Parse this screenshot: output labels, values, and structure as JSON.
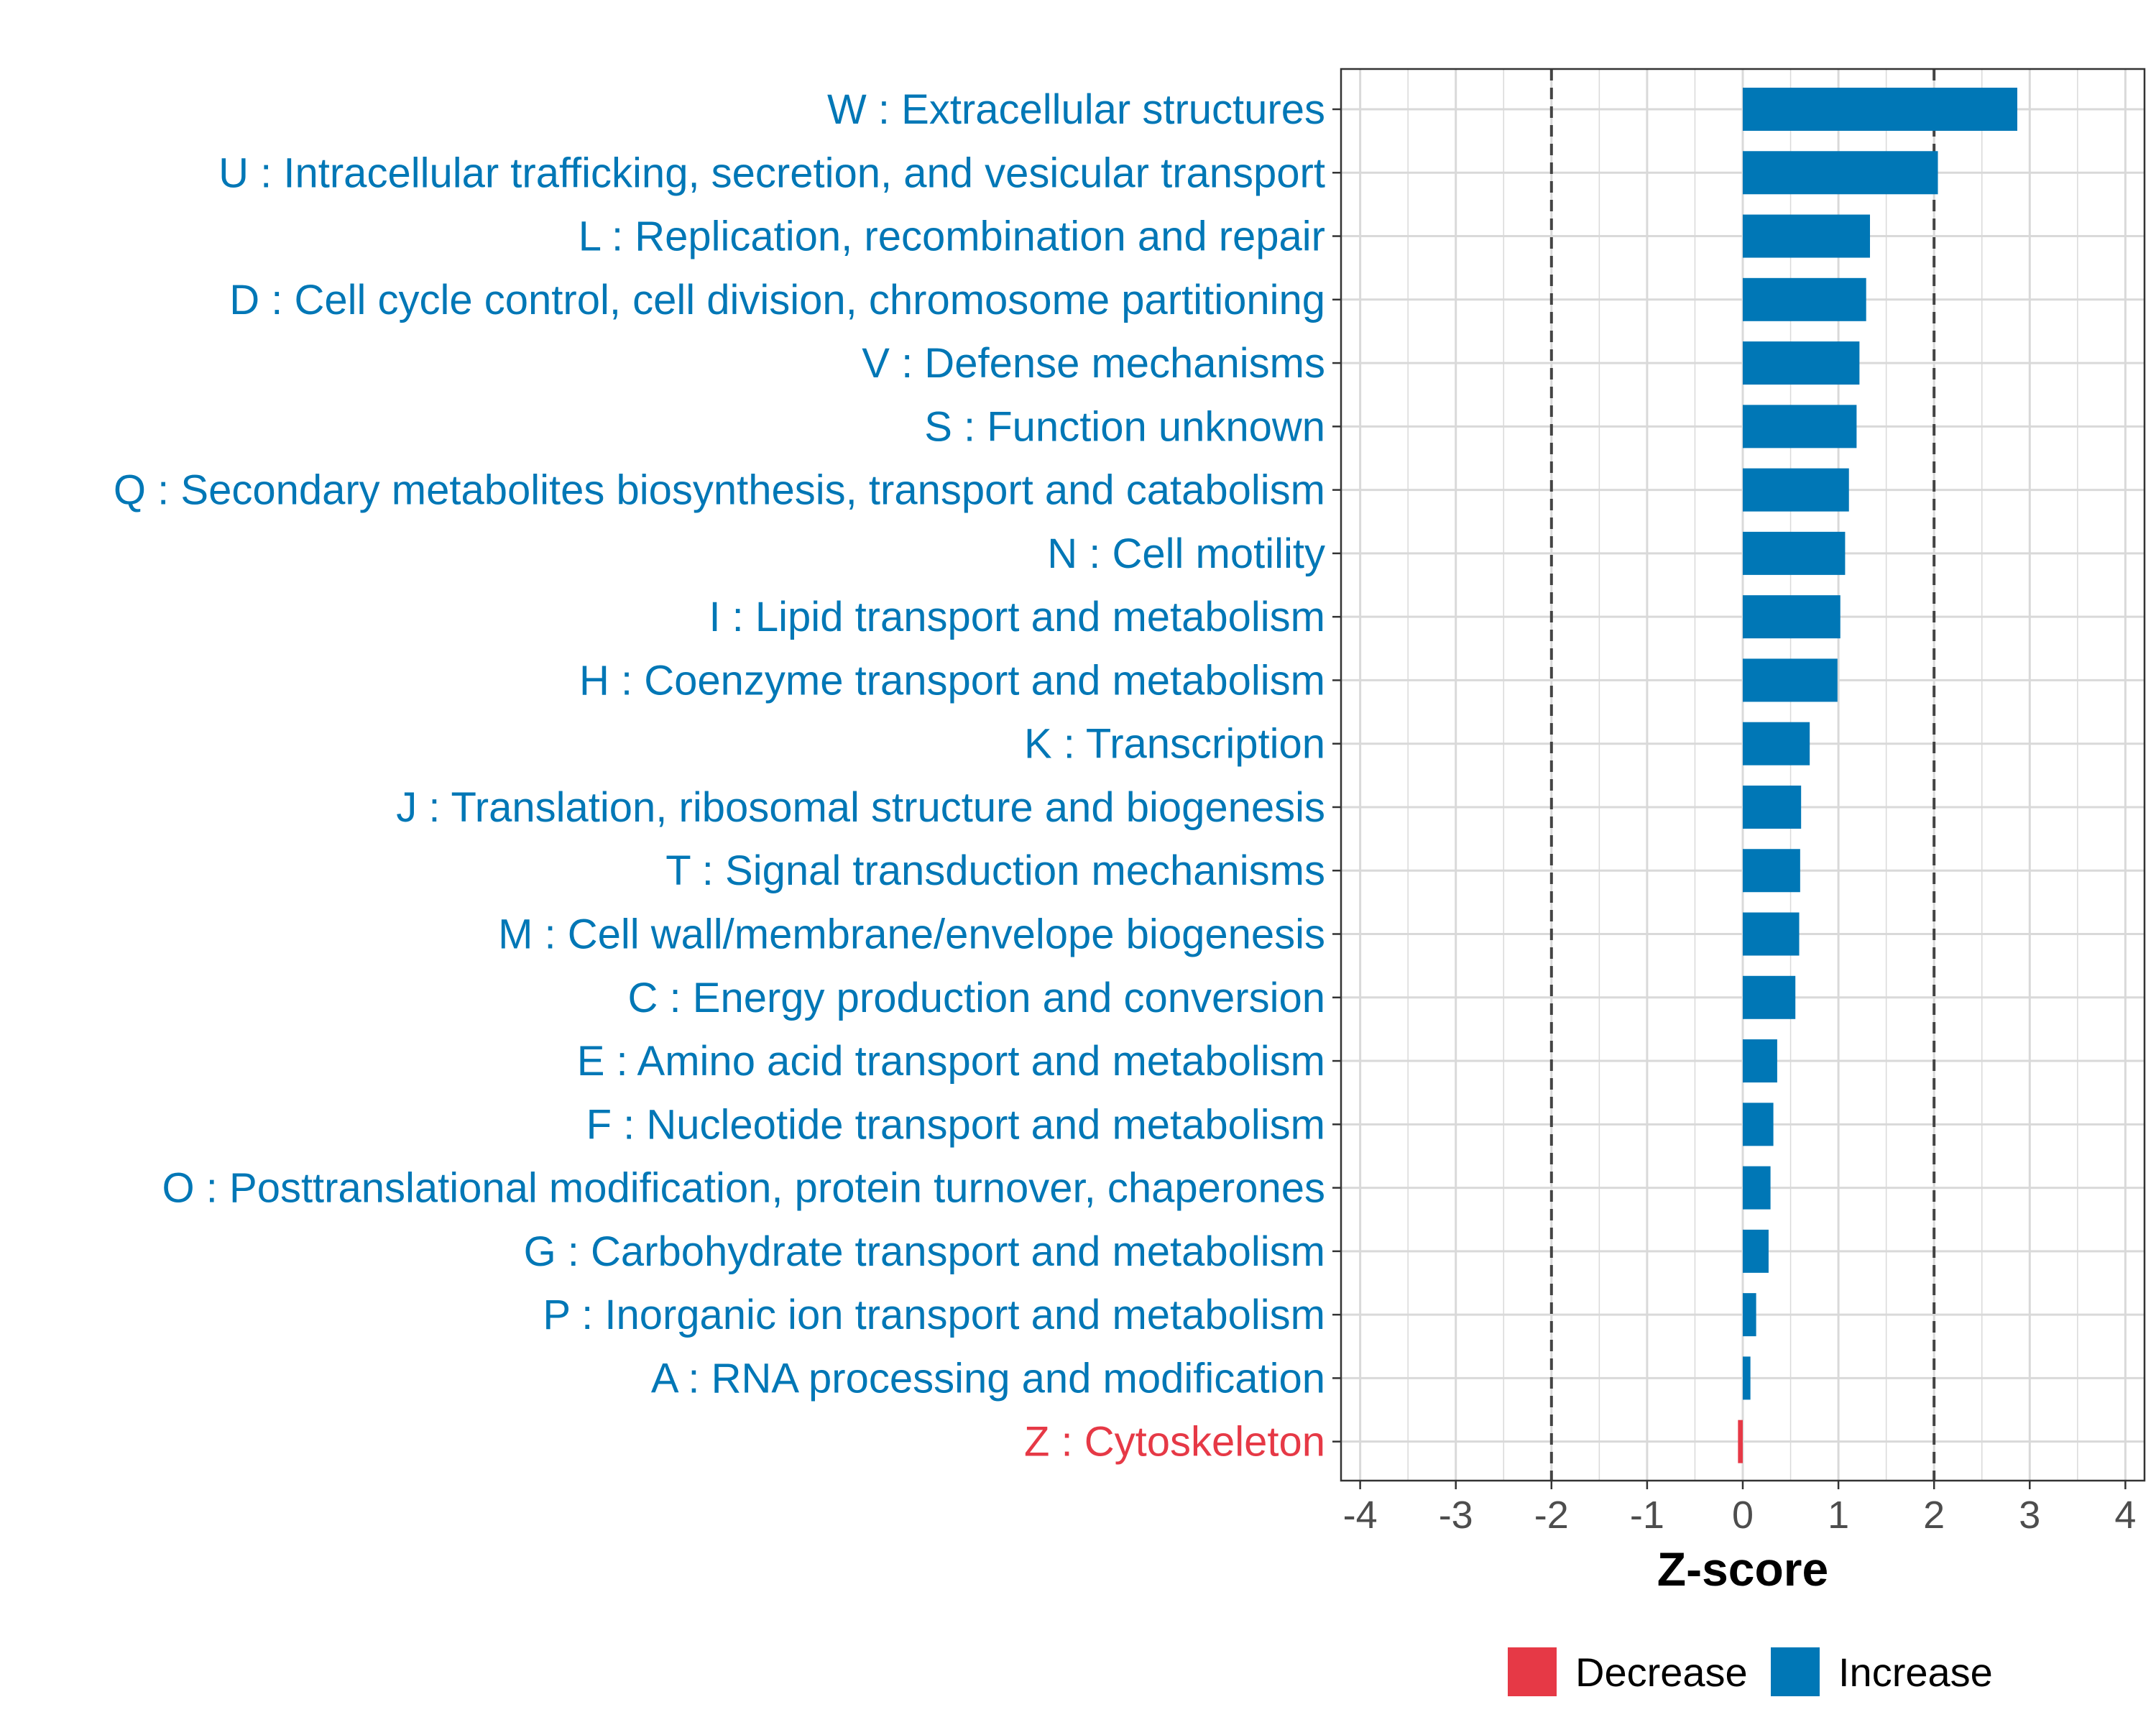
{
  "chart_data": {
    "type": "bar",
    "orientation": "horizontal",
    "title": "",
    "xlabel": "Z-score",
    "ylabel": "",
    "xlim": [
      -4.2,
      4.2
    ],
    "xticks": [
      -4,
      -3,
      -2,
      -1,
      0,
      1,
      2,
      3,
      4
    ],
    "xtick_labels": [
      "-4",
      "-3",
      "-2",
      "-1",
      "0",
      "1",
      "2",
      "3",
      "4"
    ],
    "reference_lines": [
      -2,
      2
    ],
    "grid": true,
    "categories": [
      "W : Extracellular structures",
      "U : Intracellular trafficking, secretion, and vesicular transport",
      "L : Replication, recombination and repair",
      "D : Cell cycle control, cell division, chromosome partitioning",
      "V : Defense mechanisms",
      "S : Function unknown",
      "Q : Secondary metabolites biosynthesis, transport and catabolism",
      "N : Cell motility",
      "I : Lipid transport and metabolism",
      "H : Coenzyme transport and metabolism",
      "K : Transcription",
      "J : Translation, ribosomal structure and biogenesis",
      "T : Signal transduction mechanisms",
      "M : Cell wall/membrane/envelope biogenesis",
      "C : Energy production and conversion",
      "E : Amino acid transport and metabolism",
      "F : Nucleotide transport and metabolism",
      "O : Posttranslational modification, protein turnover, chaperones",
      "G : Carbohydrate transport and metabolism",
      "P : Inorganic ion transport and metabolism",
      "A : RNA processing and modification",
      "Z : Cytoskeleton"
    ],
    "values": [
      2.87,
      2.04,
      1.33,
      1.29,
      1.22,
      1.19,
      1.11,
      1.07,
      1.02,
      0.99,
      0.7,
      0.61,
      0.6,
      0.59,
      0.55,
      0.36,
      0.32,
      0.29,
      0.27,
      0.14,
      0.08,
      -0.05
    ],
    "groups": [
      "Increase",
      "Increase",
      "Increase",
      "Increase",
      "Increase",
      "Increase",
      "Increase",
      "Increase",
      "Increase",
      "Increase",
      "Increase",
      "Increase",
      "Increase",
      "Increase",
      "Increase",
      "Increase",
      "Increase",
      "Increase",
      "Increase",
      "Increase",
      "Increase",
      "Decrease"
    ],
    "legend": [
      {
        "name": "Decrease",
        "color": "#e63946"
      },
      {
        "name": "Increase",
        "color": "#0077b6"
      }
    ],
    "legend_position": "bottom"
  }
}
